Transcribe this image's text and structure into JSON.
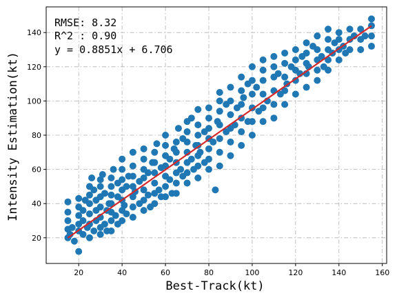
{
  "chart_data": {
    "type": "scatter",
    "title": "",
    "xlabel": "Best-Track(kt)",
    "ylabel": "Intensity Estimation(kt)",
    "xlim": [
      5,
      162
    ],
    "ylim": [
      5,
      155
    ],
    "xticks": [
      20,
      40,
      60,
      80,
      100,
      120,
      140,
      160
    ],
    "yticks": [
      20,
      40,
      60,
      80,
      100,
      120,
      140
    ],
    "grid": true,
    "annotations": [
      "RMSE: 8.32",
      "R^2 : 0.90",
      "y = 0.8851x + 6.706"
    ],
    "fit_line": {
      "slope": 0.8851,
      "intercept": 6.706,
      "x_range": [
        15,
        155
      ]
    },
    "colors": {
      "points": "#1f77b4",
      "fit": "#d62728"
    },
    "points": [
      [
        15,
        20
      ],
      [
        15,
        25
      ],
      [
        15,
        30
      ],
      [
        15,
        35
      ],
      [
        15,
        41
      ],
      [
        16,
        22
      ],
      [
        17,
        26
      ],
      [
        18,
        18
      ],
      [
        20,
        12
      ],
      [
        20,
        24
      ],
      [
        20,
        28
      ],
      [
        20,
        33
      ],
      [
        20,
        38
      ],
      [
        20,
        43
      ],
      [
        22,
        22
      ],
      [
        22,
        30
      ],
      [
        22,
        36
      ],
      [
        23,
        42
      ],
      [
        24,
        26
      ],
      [
        25,
        20
      ],
      [
        25,
        28
      ],
      [
        25,
        34
      ],
      [
        25,
        40
      ],
      [
        25,
        45
      ],
      [
        25,
        50
      ],
      [
        26,
        55
      ],
      [
        27,
        24
      ],
      [
        27,
        48
      ],
      [
        28,
        30
      ],
      [
        28,
        36
      ],
      [
        28,
        42
      ],
      [
        30,
        22
      ],
      [
        30,
        26
      ],
      [
        30,
        32
      ],
      [
        30,
        38
      ],
      [
        30,
        44
      ],
      [
        30,
        50
      ],
      [
        30,
        54
      ],
      [
        31,
        57
      ],
      [
        32,
        28
      ],
      [
        32,
        46
      ],
      [
        33,
        24
      ],
      [
        33,
        36
      ],
      [
        34,
        40
      ],
      [
        35,
        24
      ],
      [
        35,
        30
      ],
      [
        35,
        35
      ],
      [
        35,
        40
      ],
      [
        35,
        45
      ],
      [
        35,
        50
      ],
      [
        35,
        55
      ],
      [
        36,
        60
      ],
      [
        37,
        33
      ],
      [
        38,
        28
      ],
      [
        38,
        44
      ],
      [
        38,
        52
      ],
      [
        40,
        30
      ],
      [
        40,
        36
      ],
      [
        40,
        42
      ],
      [
        40,
        48
      ],
      [
        40,
        54
      ],
      [
        40,
        60
      ],
      [
        40,
        66
      ],
      [
        41,
        39
      ],
      [
        42,
        34
      ],
      [
        42,
        50
      ],
      [
        43,
        56
      ],
      [
        45,
        32
      ],
      [
        45,
        38
      ],
      [
        45,
        44
      ],
      [
        45,
        50
      ],
      [
        45,
        56
      ],
      [
        45,
        62
      ],
      [
        45,
        70
      ],
      [
        46,
        47
      ],
      [
        48,
        40
      ],
      [
        48,
        53
      ],
      [
        50,
        36
      ],
      [
        50,
        42
      ],
      [
        50,
        48
      ],
      [
        50,
        55
      ],
      [
        50,
        60
      ],
      [
        50,
        66
      ],
      [
        50,
        72
      ],
      [
        52,
        45
      ],
      [
        52,
        58
      ],
      [
        53,
        38
      ],
      [
        54,
        64
      ],
      [
        55,
        40
      ],
      [
        55,
        46
      ],
      [
        55,
        52
      ],
      [
        55,
        58
      ],
      [
        55,
        64
      ],
      [
        55,
        70
      ],
      [
        56,
        75
      ],
      [
        57,
        48
      ],
      [
        58,
        44
      ],
      [
        58,
        61
      ],
      [
        60,
        44
      ],
      [
        60,
        50
      ],
      [
        60,
        56
      ],
      [
        60,
        62
      ],
      [
        60,
        68
      ],
      [
        60,
        74
      ],
      [
        60,
        80
      ],
      [
        62,
        54
      ],
      [
        62,
        66
      ],
      [
        63,
        46
      ],
      [
        64,
        72
      ],
      [
        65,
        46
      ],
      [
        65,
        52
      ],
      [
        65,
        58
      ],
      [
        65,
        64
      ],
      [
        65,
        70
      ],
      [
        65,
        76
      ],
      [
        66,
        84
      ],
      [
        67,
        60
      ],
      [
        68,
        56
      ],
      [
        68,
        78
      ],
      [
        70,
        52
      ],
      [
        70,
        58
      ],
      [
        70,
        64
      ],
      [
        70,
        70
      ],
      [
        70,
        76
      ],
      [
        70,
        82
      ],
      [
        70,
        88
      ],
      [
        72,
        66
      ],
      [
        72,
        90
      ],
      [
        73,
        60
      ],
      [
        74,
        74
      ],
      [
        75,
        55
      ],
      [
        75,
        62
      ],
      [
        75,
        68
      ],
      [
        75,
        74
      ],
      [
        75,
        80
      ],
      [
        75,
        86
      ],
      [
        75,
        95
      ],
      [
        76,
        70
      ],
      [
        78,
        64
      ],
      [
        78,
        82
      ],
      [
        80,
        60
      ],
      [
        80,
        66
      ],
      [
        80,
        72
      ],
      [
        80,
        78
      ],
      [
        80,
        84
      ],
      [
        80,
        90
      ],
      [
        80,
        96
      ],
      [
        82,
        76
      ],
      [
        83,
        48
      ],
      [
        84,
        88
      ],
      [
        85,
        62
      ],
      [
        85,
        70
      ],
      [
        85,
        78
      ],
      [
        85,
        86
      ],
      [
        85,
        94
      ],
      [
        85,
        100
      ],
      [
        85,
        105
      ],
      [
        88,
        82
      ],
      [
        88,
        98
      ],
      [
        90,
        68
      ],
      [
        90,
        76
      ],
      [
        90,
        84
      ],
      [
        90,
        92
      ],
      [
        90,
        100
      ],
      [
        90,
        108
      ],
      [
        92,
        86
      ],
      [
        93,
        96
      ],
      [
        95,
        74
      ],
      [
        95,
        82
      ],
      [
        95,
        90
      ],
      [
        95,
        98
      ],
      [
        95,
        106
      ],
      [
        95,
        114
      ],
      [
        96,
        102
      ],
      [
        98,
        88
      ],
      [
        98,
        110
      ],
      [
        100,
        80
      ],
      [
        100,
        88
      ],
      [
        100,
        96
      ],
      [
        100,
        104
      ],
      [
        100,
        112
      ],
      [
        100,
        120
      ],
      [
        102,
        108
      ],
      [
        103,
        94
      ],
      [
        105,
        88
      ],
      [
        105,
        96
      ],
      [
        105,
        104
      ],
      [
        105,
        112
      ],
      [
        105,
        118
      ],
      [
        105,
        124
      ],
      [
        107,
        100
      ],
      [
        110,
        90
      ],
      [
        110,
        98
      ],
      [
        110,
        106
      ],
      [
        110,
        114
      ],
      [
        110,
        120
      ],
      [
        110,
        126
      ],
      [
        112,
        116
      ],
      [
        113,
        104
      ],
      [
        115,
        98
      ],
      [
        115,
        106
      ],
      [
        115,
        114
      ],
      [
        115,
        122
      ],
      [
        115,
        128
      ],
      [
        116,
        110
      ],
      [
        118,
        120
      ],
      [
        120,
        104
      ],
      [
        120,
        112
      ],
      [
        120,
        118
      ],
      [
        120,
        124
      ],
      [
        120,
        130
      ],
      [
        122,
        116
      ],
      [
        123,
        126
      ],
      [
        125,
        108
      ],
      [
        125,
        116
      ],
      [
        125,
        122
      ],
      [
        125,
        128
      ],
      [
        125,
        134
      ],
      [
        126,
        120
      ],
      [
        128,
        132
      ],
      [
        130,
        112
      ],
      [
        130,
        118
      ],
      [
        130,
        124
      ],
      [
        130,
        130
      ],
      [
        130,
        138
      ],
      [
        132,
        126
      ],
      [
        133,
        120
      ],
      [
        135,
        118
      ],
      [
        135,
        124
      ],
      [
        135,
        130
      ],
      [
        135,
        136
      ],
      [
        135,
        142
      ],
      [
        137,
        128
      ],
      [
        138,
        134
      ],
      [
        140,
        124
      ],
      [
        140,
        130
      ],
      [
        140,
        136
      ],
      [
        140,
        140
      ],
      [
        142,
        132
      ],
      [
        143,
        128
      ],
      [
        145,
        130
      ],
      [
        145,
        136
      ],
      [
        145,
        142
      ],
      [
        147,
        138
      ],
      [
        150,
        130
      ],
      [
        150,
        136
      ],
      [
        150,
        142
      ],
      [
        152,
        138
      ],
      [
        155,
        132
      ],
      [
        155,
        138
      ],
      [
        155,
        144
      ],
      [
        155,
        148
      ]
    ]
  }
}
